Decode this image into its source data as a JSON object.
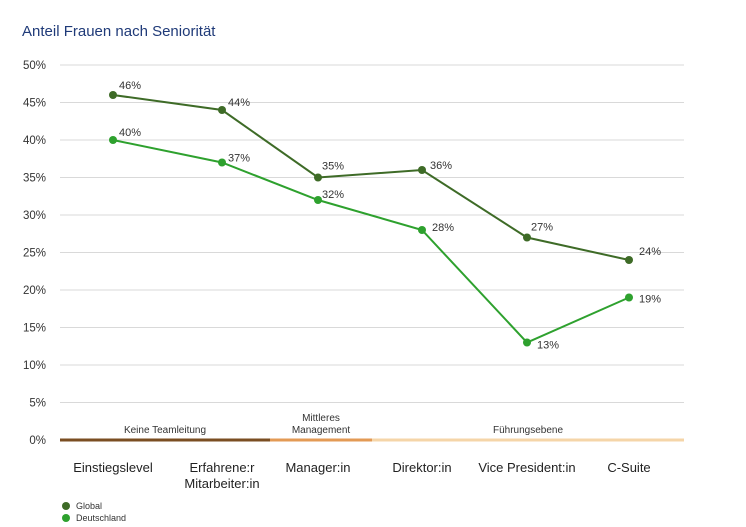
{
  "chart_data": {
    "type": "line",
    "title": "Anteil Frauen nach Seniorität",
    "categories": [
      "Einstiegslevel",
      [
        "Erfahrene:r",
        "Mitarbeiter:in"
      ],
      "Manager:in",
      "Direktor:in",
      "Vice President:in",
      "C-Suite"
    ],
    "series": [
      {
        "name": "Global",
        "values": [
          46,
          44,
          35,
          36,
          27,
          24
        ],
        "labels": [
          "46%",
          "44%",
          "35%",
          "36%",
          "27%",
          "24%"
        ],
        "color": "#3e6b27"
      },
      {
        "name": "Deutschland",
        "values": [
          40,
          37,
          32,
          28,
          13,
          19
        ],
        "labels": [
          "40%",
          "37%",
          "32%",
          "28%",
          "13%",
          "19%"
        ],
        "color": "#2ea12e"
      }
    ],
    "ylim": [
      0,
      50
    ],
    "yticks": [
      "0%",
      "5%",
      "10%",
      "15%",
      "20%",
      "25%",
      "30%",
      "35%",
      "40%",
      "45%",
      "50%"
    ],
    "grid": true,
    "legend_position": "bottom-left",
    "bands": [
      {
        "label": [
          "Keine Teamleitung"
        ],
        "from": 0,
        "to": 2,
        "color": "#7a4e22"
      },
      {
        "label": [
          "Mittleres",
          "Management"
        ],
        "from": 2,
        "to": 3,
        "color": "#e39a55"
      },
      {
        "label": [
          "Führungsebene"
        ],
        "from": 3,
        "to": 6,
        "color": "#f5d5a8"
      }
    ]
  }
}
